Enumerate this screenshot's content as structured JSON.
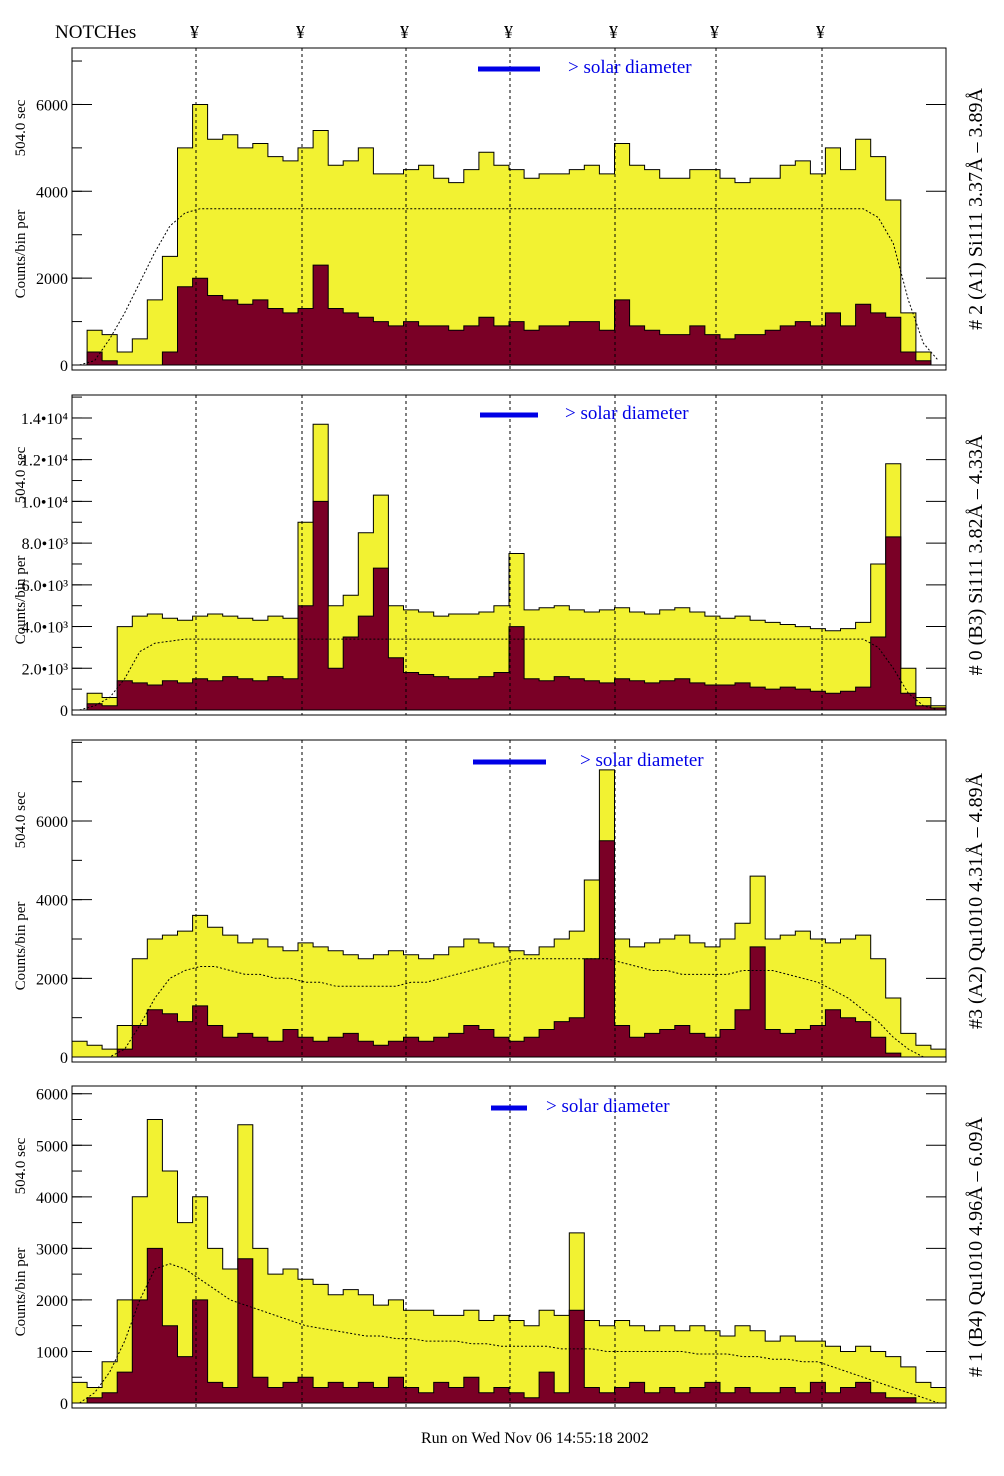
{
  "header": {
    "notches_label": "NOTCHes",
    "notch_symbol": "¥",
    "notch_count": 7
  },
  "footer": {
    "run_text": "Run on Wed Nov 06 14:55:18 2002"
  },
  "colors": {
    "total": "#f2f232",
    "subset": "#7a0026",
    "solar_bar": "#0000e6",
    "solar_text": "#0000e6"
  },
  "chart_data": [
    {
      "type": "bar",
      "title": "# 2 (A1) Si111  3.37Å – 3.89Å",
      "ylabel": "Counts/bin per",
      "ylabel2": "504.0 sec",
      "legend": "> solar diameter",
      "ylim": [
        0,
        7300
      ],
      "yticks": [
        0,
        2000,
        4000,
        6000
      ],
      "ytick_labels": [
        "0",
        "2000",
        "4000",
        "6000"
      ],
      "series": [
        {
          "name": "total",
          "values": [
            0,
            800,
            700,
            300,
            600,
            1500,
            2500,
            5000,
            6000,
            5200,
            5300,
            5000,
            5100,
            4800,
            4700,
            5000,
            5400,
            4600,
            4700,
            5000,
            4400,
            4400,
            4500,
            4600,
            4300,
            4200,
            4500,
            4900,
            4600,
            4500,
            4300,
            4400,
            4400,
            4500,
            4600,
            4400,
            5100,
            4600,
            4500,
            4300,
            4300,
            4500,
            4500,
            4300,
            4200,
            4300,
            4300,
            4600,
            4700,
            4400,
            5000,
            4500,
            5200,
            4800,
            3800,
            1200,
            300,
            0
          ]
        },
        {
          "name": "subset",
          "values": [
            0,
            300,
            100,
            0,
            0,
            0,
            300,
            1800,
            2000,
            1600,
            1500,
            1400,
            1500,
            1300,
            1200,
            1300,
            2300,
            1300,
            1200,
            1100,
            1000,
            900,
            1000,
            900,
            900,
            800,
            900,
            1100,
            900,
            1000,
            800,
            900,
            900,
            1000,
            1000,
            800,
            1500,
            900,
            800,
            700,
            700,
            900,
            700,
            600,
            700,
            700,
            800,
            900,
            1000,
            900,
            1200,
            900,
            1400,
            1200,
            1100,
            300,
            100,
            0
          ]
        },
        {
          "name": "model",
          "values": [
            0,
            100,
            600,
            1200,
            1900,
            2600,
            3200,
            3500,
            3600,
            3600,
            3600,
            3600,
            3600,
            3600,
            3600,
            3600,
            3600,
            3600,
            3600,
            3600,
            3600,
            3600,
            3600,
            3600,
            3600,
            3600,
            3600,
            3600,
            3600,
            3600,
            3600,
            3600,
            3600,
            3600,
            3600,
            3600,
            3600,
            3600,
            3600,
            3600,
            3600,
            3600,
            3600,
            3600,
            3600,
            3600,
            3600,
            3600,
            3600,
            3600,
            3600,
            3600,
            3600,
            3400,
            2800,
            1500,
            500,
            100
          ]
        }
      ]
    },
    {
      "type": "bar",
      "title": "# 0 (B3) Si111  3.82Å – 4.33Å",
      "ylabel": "Counts/bin per",
      "ylabel2": "504.0 sec",
      "legend": "> solar diameter",
      "ylim": [
        0,
        15100
      ],
      "yticks": [
        0,
        2000,
        4000,
        6000,
        8000,
        10000,
        12000,
        14000
      ],
      "ytick_labels": [
        "0",
        "2.0•10³",
        "4.0•10³",
        "6.0•10³",
        "8.0•10³",
        "1.0•10⁴",
        "1.2•10⁴",
        "1.4•10⁴"
      ],
      "series": [
        {
          "name": "total",
          "values": [
            0,
            800,
            600,
            4000,
            4500,
            4600,
            4400,
            4300,
            4500,
            4600,
            4500,
            4400,
            4300,
            4500,
            4400,
            9000,
            13700,
            5000,
            5500,
            8500,
            10300,
            5000,
            4800,
            4700,
            4500,
            4600,
            4600,
            4700,
            5000,
            7500,
            4800,
            4900,
            5000,
            4800,
            4700,
            4800,
            4900,
            4700,
            4600,
            4800,
            4900,
            4700,
            4500,
            4400,
            4500,
            4300,
            4200,
            4100,
            4000,
            3900,
            3800,
            3900,
            4200,
            7000,
            11800,
            2000,
            600,
            200
          ]
        },
        {
          "name": "subset",
          "values": [
            0,
            300,
            200,
            1400,
            1300,
            1200,
            1400,
            1300,
            1500,
            1400,
            1600,
            1500,
            1400,
            1600,
            1500,
            5000,
            10000,
            2000,
            3500,
            4500,
            6800,
            2500,
            1800,
            1700,
            1600,
            1500,
            1500,
            1600,
            1800,
            4000,
            1500,
            1400,
            1600,
            1500,
            1400,
            1300,
            1500,
            1400,
            1300,
            1400,
            1500,
            1300,
            1200,
            1200,
            1300,
            1100,
            1000,
            1100,
            1000,
            900,
            800,
            900,
            1100,
            3500,
            8300,
            800,
            200,
            100
          ]
        },
        {
          "name": "model",
          "values": [
            0,
            200,
            600,
            1500,
            2800,
            3200,
            3300,
            3400,
            3400,
            3400,
            3400,
            3400,
            3400,
            3400,
            3400,
            3400,
            3400,
            3400,
            3400,
            3400,
            3400,
            3400,
            3400,
            3400,
            3400,
            3400,
            3400,
            3400,
            3400,
            3400,
            3400,
            3400,
            3400,
            3400,
            3400,
            3400,
            3400,
            3400,
            3400,
            3400,
            3400,
            3400,
            3400,
            3400,
            3400,
            3400,
            3400,
            3400,
            3400,
            3400,
            3400,
            3400,
            3400,
            3000,
            2000,
            800,
            200,
            0
          ]
        }
      ]
    },
    {
      "type": "bar",
      "title": "#3 (A2) Qu1010  4.31Å – 4.89Å",
      "ylabel": "Counts/bin per",
      "ylabel2": "504.0 sec",
      "legend": "> solar diameter",
      "ylim": [
        0,
        8060
      ],
      "yticks": [
        0,
        2000,
        4000,
        6000
      ],
      "ytick_labels": [
        "0",
        "2000",
        "4000",
        "6000"
      ],
      "series": [
        {
          "name": "total",
          "values": [
            400,
            300,
            200,
            800,
            2500,
            3000,
            3100,
            3200,
            3600,
            3300,
            3100,
            2900,
            3000,
            2800,
            2700,
            2900,
            2800,
            2700,
            2600,
            2500,
            2600,
            2700,
            2600,
            2500,
            2600,
            2800,
            3000,
            2900,
            2800,
            2700,
            2600,
            2800,
            3000,
            3200,
            4500,
            7300,
            3000,
            2800,
            2900,
            3000,
            3100,
            2900,
            2800,
            3000,
            3400,
            4600,
            3000,
            3100,
            3200,
            3000,
            2900,
            3000,
            3100,
            2500,
            1500,
            600,
            300,
            200
          ]
        },
        {
          "name": "subset",
          "values": [
            0,
            0,
            0,
            200,
            800,
            1200,
            1100,
            900,
            1300,
            800,
            500,
            600,
            500,
            400,
            700,
            500,
            400,
            500,
            600,
            400,
            300,
            400,
            500,
            400,
            500,
            600,
            800,
            700,
            500,
            400,
            500,
            700,
            900,
            1000,
            2500,
            5500,
            800,
            500,
            600,
            700,
            800,
            600,
            500,
            700,
            1200,
            2800,
            700,
            600,
            700,
            800,
            1200,
            1000,
            900,
            500,
            100,
            0,
            0,
            0
          ]
        },
        {
          "name": "model",
          "values": [
            0,
            0,
            0,
            200,
            800,
            1500,
            2000,
            2200,
            2300,
            2300,
            2200,
            2100,
            2100,
            2000,
            2000,
            1900,
            1900,
            1800,
            1800,
            1800,
            1800,
            1800,
            1900,
            1900,
            2000,
            2100,
            2200,
            2300,
            2400,
            2500,
            2500,
            2500,
            2500,
            2500,
            2500,
            2500,
            2400,
            2300,
            2200,
            2200,
            2100,
            2100,
            2100,
            2100,
            2200,
            2200,
            2200,
            2100,
            2000,
            1900,
            1700,
            1500,
            1200,
            900,
            500,
            200,
            0,
            0
          ]
        }
      ]
    },
    {
      "type": "bar",
      "title": "# 1 (B4) Qu1010 4.96Å – 6.09Å",
      "ylabel": "Counts/bin per",
      "ylabel2": "504.0 sec",
      "legend": "> solar diameter",
      "ylim": [
        0,
        6150
      ],
      "yticks": [
        0,
        1000,
        2000,
        3000,
        4000,
        5000,
        6000
      ],
      "ytick_labels": [
        "0",
        "1000",
        "2000",
        "3000",
        "4000",
        "5000",
        "6000"
      ],
      "series": [
        {
          "name": "total",
          "values": [
            400,
            300,
            800,
            2000,
            4000,
            5500,
            4500,
            3500,
            4000,
            3000,
            2600,
            5400,
            3000,
            2500,
            2600,
            2400,
            2300,
            2100,
            2200,
            2100,
            1900,
            2000,
            1800,
            1800,
            1700,
            1700,
            1800,
            1600,
            1700,
            1600,
            1500,
            1800,
            1700,
            3300,
            1600,
            1500,
            1600,
            1500,
            1400,
            1500,
            1400,
            1500,
            1400,
            1300,
            1500,
            1400,
            1200,
            1300,
            1200,
            1200,
            1100,
            1000,
            1100,
            1000,
            900,
            700,
            400,
            300
          ]
        },
        {
          "name": "subset",
          "values": [
            0,
            100,
            200,
            600,
            2000,
            3000,
            1500,
            900,
            2000,
            400,
            300,
            2800,
            500,
            300,
            400,
            500,
            300,
            400,
            300,
            400,
            300,
            500,
            300,
            200,
            400,
            300,
            500,
            200,
            300,
            200,
            100,
            600,
            200,
            1800,
            300,
            200,
            300,
            400,
            200,
            300,
            200,
            300,
            400,
            200,
            300,
            200,
            200,
            300,
            200,
            400,
            200,
            300,
            400,
            200,
            100,
            100,
            0,
            0
          ]
        },
        {
          "name": "model",
          "values": [
            0,
            200,
            600,
            1200,
            2000,
            2600,
            2700,
            2600,
            2400,
            2200,
            2000,
            1900,
            1800,
            1700,
            1600,
            1500,
            1450,
            1400,
            1350,
            1300,
            1300,
            1250,
            1250,
            1200,
            1200,
            1200,
            1150,
            1150,
            1100,
            1100,
            1100,
            1100,
            1050,
            1050,
            1050,
            1000,
            1000,
            1000,
            1000,
            1000,
            1000,
            950,
            950,
            950,
            900,
            900,
            850,
            850,
            800,
            800,
            700,
            600,
            500,
            400,
            300,
            200,
            100,
            0
          ]
        }
      ]
    }
  ]
}
